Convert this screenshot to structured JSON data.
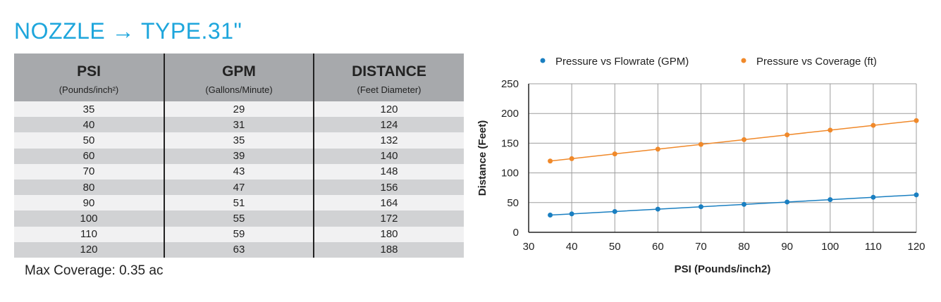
{
  "header": {
    "title": "NOZZLE → TYPE.31\""
  },
  "table": {
    "columns": [
      {
        "label": "PSI",
        "sublabel": "(Pounds/inch²)"
      },
      {
        "label": "GPM",
        "sublabel": "(Gallons/Minute)"
      },
      {
        "label": "DISTANCE",
        "sublabel": "(Feet Diameter)"
      }
    ],
    "rows": [
      [
        "35",
        "29",
        "120"
      ],
      [
        "40",
        "31",
        "124"
      ],
      [
        "50",
        "35",
        "132"
      ],
      [
        "60",
        "39",
        "140"
      ],
      [
        "70",
        "43",
        "148"
      ],
      [
        "80",
        "47",
        "156"
      ],
      [
        "90",
        "51",
        "164"
      ],
      [
        "100",
        "55",
        "172"
      ],
      [
        "110",
        "59",
        "180"
      ],
      [
        "120",
        "63",
        "188"
      ]
    ]
  },
  "footnote": "Max Coverage: 0.35 ac",
  "chart_data": {
    "type": "line",
    "title": "",
    "xlabel": "PSI (Pounds/inch2)",
    "ylabel": "Distance (Feet)",
    "x": [
      35,
      40,
      50,
      60,
      70,
      80,
      90,
      100,
      110,
      120
    ],
    "xlim": [
      30,
      120
    ],
    "ylim": [
      0,
      250
    ],
    "xticks": [
      30,
      40,
      50,
      60,
      70,
      80,
      90,
      100,
      110,
      120
    ],
    "yticks": [
      0,
      50,
      100,
      150,
      200,
      250
    ],
    "grid": true,
    "legend": "top",
    "series": [
      {
        "name": "Pressure vs Flowrate (GPM)",
        "color": "#1a7fc1",
        "values": [
          29,
          31,
          35,
          39,
          43,
          47,
          51,
          55,
          59,
          63
        ]
      },
      {
        "name": "Pressure vs Coverage (ft)",
        "color": "#f0892a",
        "values": [
          120,
          124,
          132,
          140,
          148,
          156,
          164,
          172,
          180,
          188
        ]
      }
    ]
  }
}
